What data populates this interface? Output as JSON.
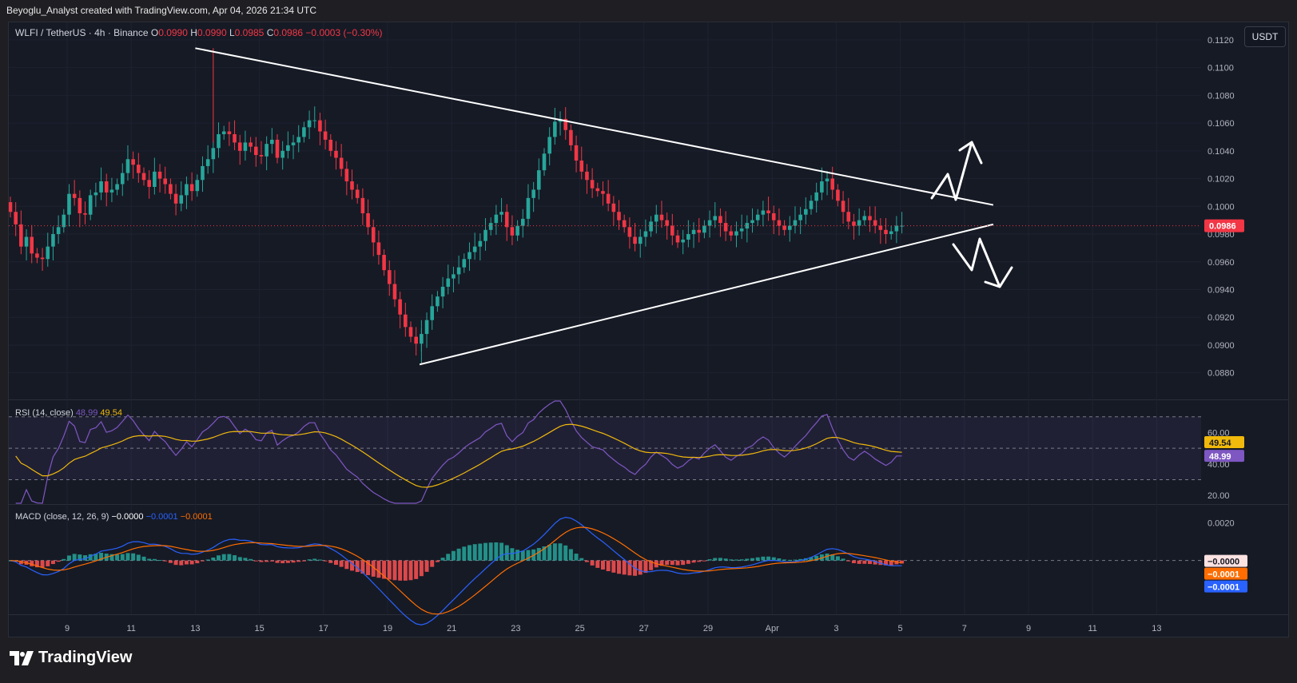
{
  "caption": "Beyoglu_Analyst created with TradingView.com, Apr 04, 2026 21:34 UTC",
  "brand": {
    "name": "TradingView",
    "icon": "tradingview-logo-icon"
  },
  "currency_button": "USDT",
  "header": {
    "symbol": "WLFI / TetherUS · 4h · Binance",
    "o_label": "O",
    "o": "0.0990",
    "h_label": "H",
    "h": "0.0990",
    "l_label": "L",
    "l": "0.0985",
    "c_label": "C",
    "c": "0.0986",
    "change": "−0.0003 (−0.30%)"
  },
  "colors": {
    "up": "#26a69a",
    "down": "#f23645",
    "background": "#161a25",
    "rsi_line": "#7e57c2",
    "rsi_ma": "#f0b90b",
    "macd_line": "#2962ff",
    "signal_line": "#ff6d00",
    "trendline": "#ffffff"
  },
  "chart_data": [
    {
      "type": "candlestick",
      "title": "WLFI / TetherUS · 4h · Binance",
      "ylim": [
        0.0866,
        0.1128
      ],
      "y_ticks": [
        "0.1120",
        "0.1100",
        "0.1080",
        "0.1060",
        "0.1040",
        "0.1020",
        "0.1000",
        "0.0980",
        "0.0960",
        "0.0940",
        "0.0920",
        "0.0900",
        "0.0880"
      ],
      "x_ticks": [
        "9",
        "11",
        "13",
        "15",
        "17",
        "19",
        "21",
        "23",
        "25",
        "27",
        "29",
        "Apr",
        "3",
        "5",
        "7",
        "9",
        "11",
        "13"
      ],
      "last_price": "0.0986",
      "series": [
        {
          "name": "WLFI / TetherUS",
          "close": [
            0.0996,
            0.0987,
            0.0971,
            0.0978,
            0.0966,
            0.0963,
            0.0962,
            0.0971,
            0.098,
            0.0985,
            0.0994,
            0.1009,
            0.1006,
            0.0995,
            0.0994,
            0.1008,
            0.101,
            0.1018,
            0.101,
            0.1012,
            0.1016,
            0.1024,
            0.1034,
            0.103,
            0.1024,
            0.1019,
            0.1014,
            0.1025,
            0.102,
            0.1016,
            0.1009,
            0.1002,
            0.1008,
            0.1016,
            0.1011,
            0.1019,
            0.1029,
            0.1034,
            0.1042,
            0.1052,
            0.1054,
            0.1052,
            0.1046,
            0.104,
            0.1046,
            0.1043,
            0.1037,
            0.1036,
            0.1045,
            0.1048,
            0.1035,
            0.104,
            0.1044,
            0.1046,
            0.105,
            0.1057,
            0.1062,
            0.1062,
            0.1054,
            0.1048,
            0.104,
            0.1035,
            0.1027,
            0.1018,
            0.1012,
            0.1006,
            0.0995,
            0.0985,
            0.0974,
            0.0965,
            0.0954,
            0.0944,
            0.0933,
            0.0922,
            0.0913,
            0.0906,
            0.0901,
            0.0908,
            0.0918,
            0.0928,
            0.0935,
            0.0942,
            0.0948,
            0.0951,
            0.0956,
            0.0962,
            0.0967,
            0.0971,
            0.0975,
            0.0983,
            0.0988,
            0.0994,
            0.0996,
            0.0985,
            0.0979,
            0.0986,
            0.0991,
            0.1006,
            0.1012,
            0.1026,
            0.1038,
            0.105,
            0.1061,
            0.1063,
            0.1055,
            0.1044,
            0.1033,
            0.1025,
            0.1019,
            0.1013,
            0.1011,
            0.1009,
            0.1002,
            0.0996,
            0.099,
            0.0985,
            0.0978,
            0.0973,
            0.0978,
            0.0982,
            0.0989,
            0.0994,
            0.099,
            0.0986,
            0.0979,
            0.0974,
            0.0976,
            0.098,
            0.0983,
            0.0981,
            0.0986,
            0.099,
            0.0993,
            0.0988,
            0.0982,
            0.0979,
            0.0982,
            0.0984,
            0.0988,
            0.099,
            0.0994,
            0.0997,
            0.0995,
            0.099,
            0.0986,
            0.0983,
            0.0986,
            0.099,
            0.0994,
            0.0998,
            0.1004,
            0.101,
            0.1018,
            0.102,
            0.1012,
            0.1004,
            0.0996,
            0.0989,
            0.0986,
            0.099,
            0.0993,
            0.099,
            0.0986,
            0.0983,
            0.098,
            0.0982,
            0.0986,
            0.0986
          ]
        }
      ]
    },
    {
      "type": "line",
      "title": "RSI (14, close)",
      "values_label": [
        "48.99",
        "49.54"
      ],
      "ylim": [
        15,
        80
      ],
      "y_ticks": [
        "60.00",
        "40.00",
        "20.00"
      ],
      "bands": [
        70,
        50,
        30
      ],
      "series": [
        {
          "name": "RSI",
          "value": 48.99
        },
        {
          "name": "RSI-based MA",
          "value": 49.54
        }
      ]
    },
    {
      "type": "line",
      "title": "MACD (close, 12, 26, 9)",
      "values_label": [
        "−0.0000",
        "−0.0001",
        "−0.0001"
      ],
      "y_ticks": [
        "0.0020"
      ],
      "ylim": [
        -0.0028,
        0.0029
      ],
      "series": [
        {
          "name": "Histogram",
          "value": -0.0
        },
        {
          "name": "MACD",
          "value": -0.0001
        },
        {
          "name": "Signal",
          "value": -0.0001
        }
      ]
    }
  ],
  "annotations": {
    "pattern": "symmetrical triangle",
    "upper_trendline": {
      "from": [
        0.1114,
        "Mar 13"
      ],
      "to": [
        0.1001,
        "Apr 07"
      ]
    },
    "lower_trendline": {
      "from": [
        0.0886,
        "Mar 20"
      ],
      "to": [
        0.0987,
        "Apr 07"
      ]
    },
    "arrows": [
      "breakout-up-arrow",
      "breakdown-down-arrow"
    ]
  }
}
